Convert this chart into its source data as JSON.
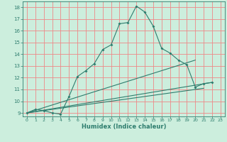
{
  "title": "",
  "xlabel": "Humidex (Indice chaleur)",
  "bg_color": "#cceedd",
  "grid_color": "#ee8888",
  "line_color": "#2e7d6e",
  "xlim": [
    -0.5,
    23.5
  ],
  "ylim": [
    8.7,
    18.5
  ],
  "xticks": [
    0,
    1,
    2,
    3,
    4,
    5,
    6,
    7,
    8,
    9,
    10,
    11,
    12,
    13,
    14,
    15,
    16,
    17,
    18,
    19,
    20,
    21,
    22,
    23
  ],
  "yticks": [
    9,
    10,
    11,
    12,
    13,
    14,
    15,
    16,
    17,
    18
  ],
  "series1_x": [
    0,
    1,
    2,
    3,
    4,
    5,
    6,
    7,
    8,
    9,
    10,
    11,
    12,
    13,
    14,
    15,
    16,
    17,
    18,
    19,
    20,
    21,
    22
  ],
  "series1_y": [
    9.0,
    9.3,
    9.2,
    9.0,
    8.9,
    10.4,
    12.1,
    12.6,
    13.2,
    14.4,
    14.8,
    16.6,
    16.7,
    18.1,
    17.6,
    16.4,
    14.5,
    14.1,
    13.5,
    13.1,
    11.2,
    11.5,
    11.6
  ],
  "series2_x": [
    0,
    22
  ],
  "series2_y": [
    9.0,
    11.6
  ],
  "series3_x": [
    0,
    20
  ],
  "series3_y": [
    9.0,
    13.5
  ],
  "series4_x": [
    0,
    21
  ],
  "series4_y": [
    9.0,
    11.1
  ]
}
